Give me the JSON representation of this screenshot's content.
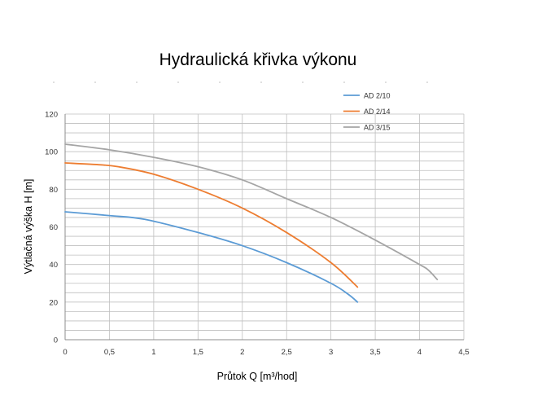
{
  "chart_data": {
    "type": "line",
    "title": "Hydraulická křivka výkonu",
    "xlabel": "Průtok Q [m³/hod]",
    "ylabel": "Výtlačná výška H [m]",
    "xlim": [
      0,
      4.5
    ],
    "ylim": [
      0,
      120
    ],
    "x_ticks": [
      "0",
      "0,5",
      "1",
      "1,5",
      "2",
      "2,5",
      "3",
      "3,5",
      "4",
      "4,5"
    ],
    "y_ticks": [
      "0",
      "20",
      "40",
      "60",
      "80",
      "100",
      "120"
    ],
    "grid": true,
    "legend_position": "top-right",
    "series": [
      {
        "name": "AD 2/10",
        "color": "#5b9bd5",
        "x": [
          0,
          0.5,
          0.9,
          1.5,
          2.0,
          2.5,
          3.0,
          3.2,
          3.3
        ],
        "y": [
          68,
          66,
          64,
          57,
          50,
          41,
          30,
          24,
          20
        ]
      },
      {
        "name": "AD 2/14",
        "color": "#ed7d31",
        "x": [
          0,
          0.4,
          0.6,
          1.0,
          1.5,
          2.0,
          2.5,
          3.0,
          3.3
        ],
        "y": [
          94,
          93,
          92,
          88,
          80,
          70,
          57,
          41,
          28
        ]
      },
      {
        "name": "AD 3/15",
        "color": "#a5a5a5",
        "x": [
          0,
          0.5,
          1.0,
          1.5,
          2.0,
          2.5,
          3.0,
          3.5,
          4.0,
          4.1,
          4.2
        ],
        "y": [
          104,
          101,
          97,
          92,
          85,
          75,
          65,
          53,
          40,
          37,
          32
        ]
      }
    ]
  }
}
